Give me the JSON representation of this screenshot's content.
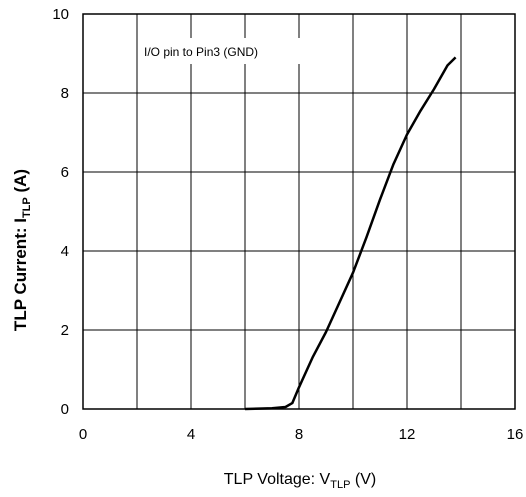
{
  "chart_data": {
    "type": "line",
    "xlabel": {
      "main": "TLP Voltage: V",
      "sub": "TLP",
      "unit": " (V)"
    },
    "ylabel": {
      "main": "TLP Current: I",
      "sub": "TLP",
      "unit": " (A)"
    },
    "annotation": "I/O pin to Pin3 (GND)",
    "xlim": [
      0,
      16
    ],
    "ylim": [
      0,
      10
    ],
    "xticks": [
      0,
      4,
      8,
      12,
      16
    ],
    "yticks": [
      0,
      2,
      4,
      6,
      8,
      10
    ],
    "grid": true,
    "series": [
      {
        "x": [
          6.0,
          7.0,
          7.5,
          7.75,
          8.0,
          8.5,
          9.0,
          9.5,
          10.0,
          10.5,
          11.0,
          11.5,
          12.0,
          12.5,
          13.0,
          13.5,
          13.8
        ],
        "y": [
          0.0,
          0.02,
          0.05,
          0.15,
          0.55,
          1.3,
          1.95,
          2.7,
          3.45,
          4.35,
          5.3,
          6.2,
          6.95,
          7.55,
          8.1,
          8.7,
          8.9
        ],
        "color": "#000000"
      }
    ]
  }
}
